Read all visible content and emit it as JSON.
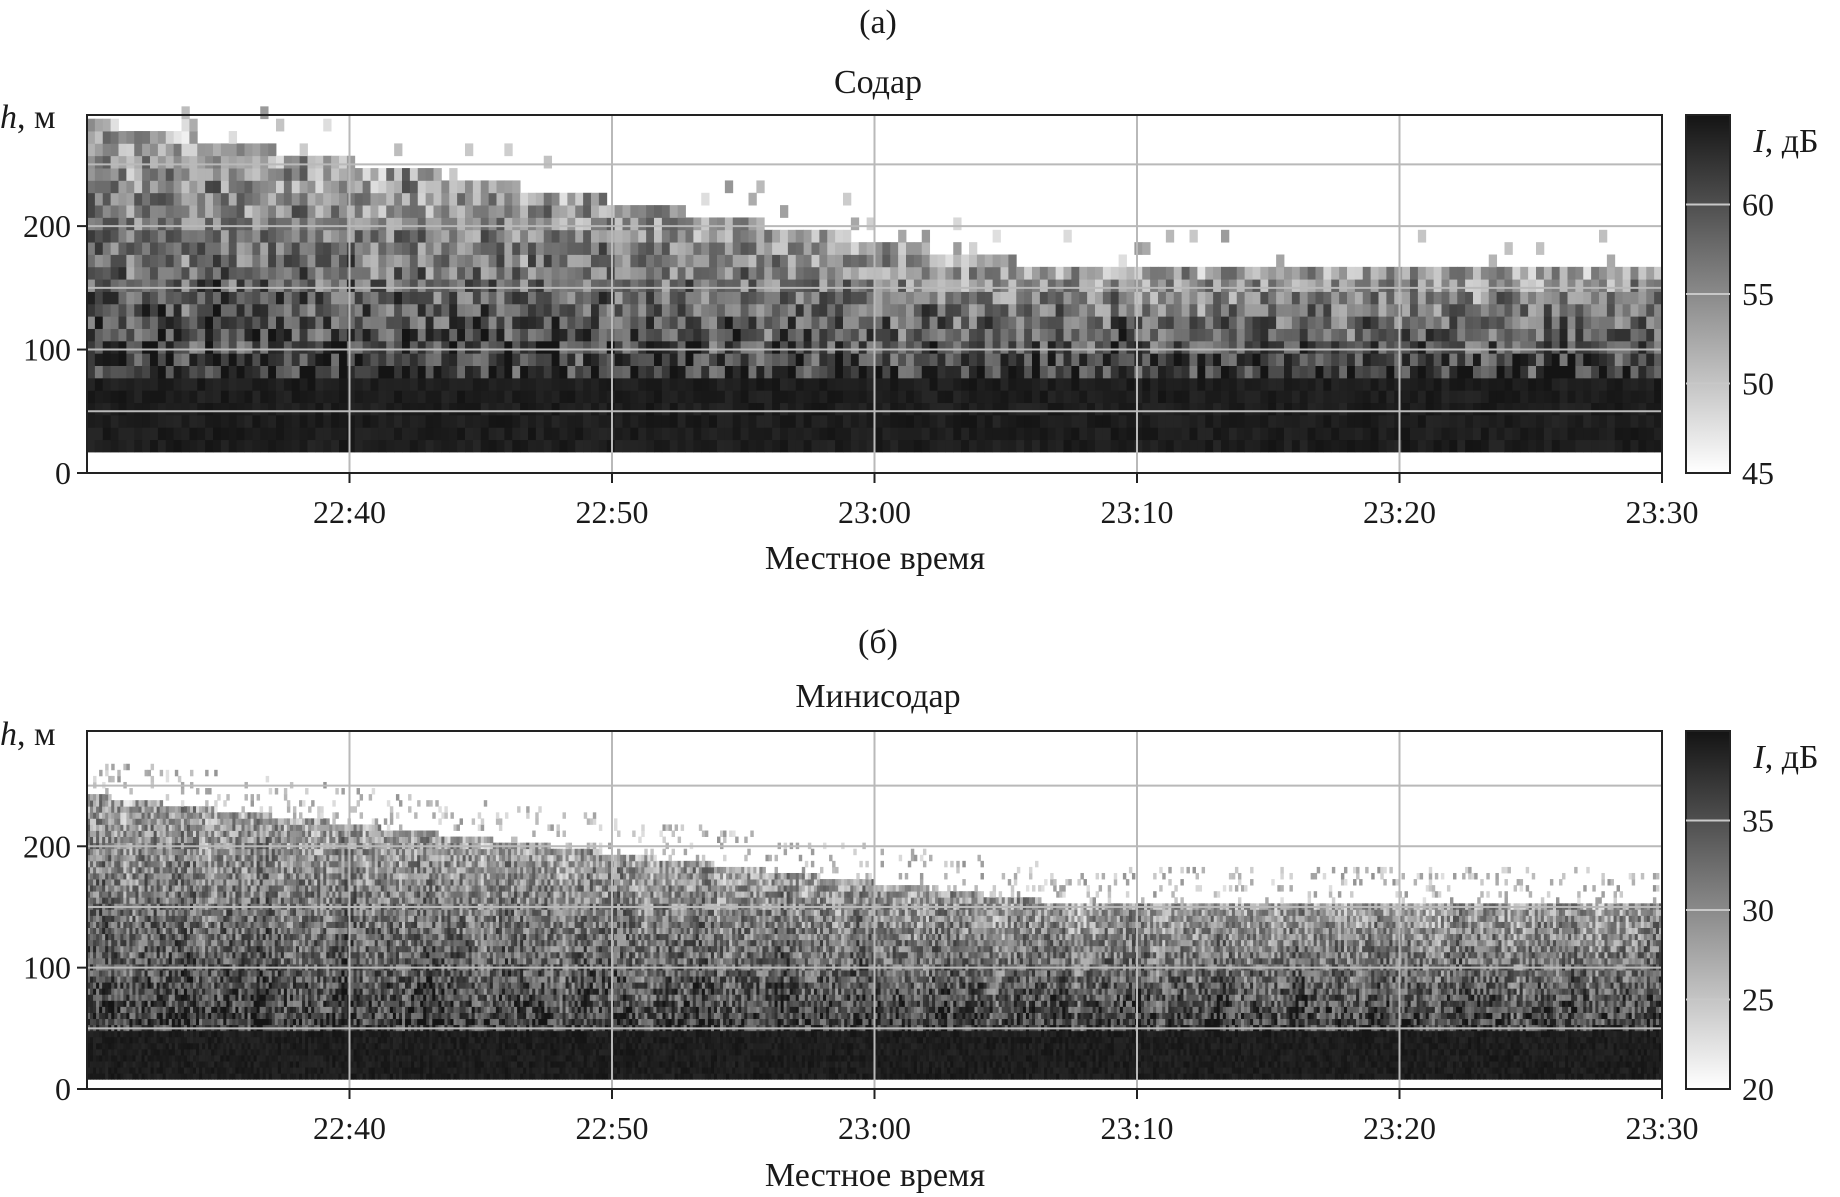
{
  "chart_data": [
    {
      "panel_label": "(а)",
      "title": "Содар",
      "type": "heatmap",
      "xlabel": "Местное время",
      "ylabel": "h, м",
      "ylabel_parts": {
        "symbol": "h",
        "rest": ", м"
      },
      "x_range": [
        "22:30",
        "23:30"
      ],
      "x_ticks": [
        "22:40",
        "22:50",
        "23:00",
        "23:10",
        "23:20",
        "23:30"
      ],
      "ylim": [
        0,
        290
      ],
      "y_ticks": [
        0,
        100,
        200
      ],
      "grid": true,
      "colorbar": {
        "label": "I, дБ",
        "label_parts": {
          "symbol": "I",
          "rest": ", дБ"
        },
        "range": [
          45,
          65
        ],
        "ticks": [
          45,
          50,
          55,
          60
        ]
      },
      "observations": {
        "data_bottom_h": 17,
        "strong_layer_top_h": 77,
        "echo_top_h_at_start": 280,
        "echo_top_h_at_end": 160,
        "strong_layer_I": 65,
        "background_I": 45
      }
    },
    {
      "panel_label": "(б)",
      "title": "Минисодар",
      "type": "heatmap",
      "xlabel": "Местное время",
      "ylabel": "h, м",
      "ylabel_parts": {
        "symbol": "h",
        "rest": ", м"
      },
      "x_range": [
        "22:30",
        "23:30"
      ],
      "x_ticks": [
        "22:40",
        "22:50",
        "23:00",
        "23:10",
        "23:20",
        "23:30"
      ],
      "ylim": [
        0,
        295
      ],
      "y_ticks": [
        0,
        100,
        200
      ],
      "grid": true,
      "colorbar": {
        "label": "I, дБ",
        "label_parts": {
          "symbol": "I",
          "rest": ", дБ"
        },
        "range": [
          20,
          40
        ],
        "ticks": [
          20,
          25,
          30,
          35
        ]
      },
      "observations": {
        "data_bottom_h": 8,
        "strong_layer_top_h": 45,
        "echo_top_h_at_start": 240,
        "echo_top_h_at_end": 150,
        "strong_layer_I": 40,
        "background_I": 20
      }
    }
  ]
}
